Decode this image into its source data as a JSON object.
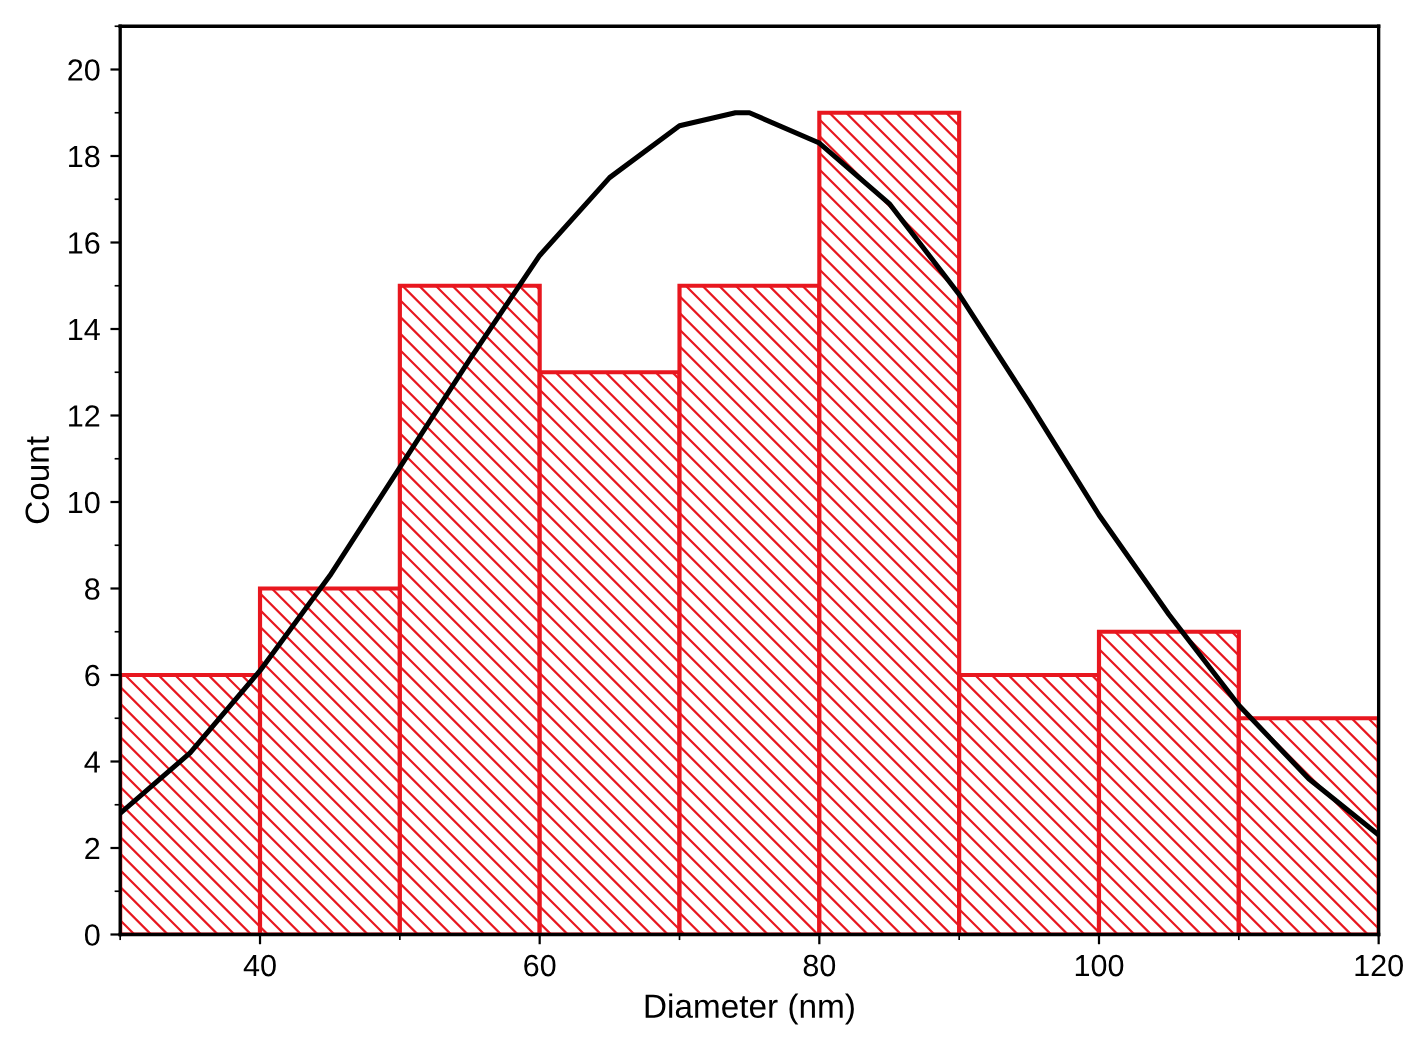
{
  "chart_data": {
    "type": "histogram",
    "xlabel": "Diameter (nm)",
    "ylabel": "Count",
    "bins": [
      30,
      40,
      50,
      60,
      70,
      80,
      90,
      100,
      110,
      120
    ],
    "values": [
      6,
      8,
      15,
      13,
      15,
      19,
      6,
      7,
      5
    ],
    "color": "#e8171f",
    "series": [
      {
        "type": "line",
        "color": "#000000",
        "x": [
          30,
          35,
          40,
          45,
          50,
          55,
          60,
          65,
          70,
          74,
          75,
          80,
          85,
          90,
          95,
          100,
          105,
          110,
          115,
          120
        ],
        "values": [
          2.8,
          4.2,
          6.1,
          8.3,
          10.8,
          13.3,
          15.7,
          17.5,
          18.7,
          19,
          19,
          18.3,
          16.9,
          14.8,
          12.3,
          9.7,
          7.4,
          5.3,
          3.6,
          2.3
        ]
      }
    ],
    "xlim": [
      30,
      120
    ],
    "xticks": [
      40,
      60,
      80,
      100,
      120
    ],
    "ylim": [
      0,
      21
    ],
    "yticks": [
      0,
      2,
      4,
      6,
      8,
      10,
      12,
      14,
      16,
      18,
      20
    ],
    "grid": false
  }
}
